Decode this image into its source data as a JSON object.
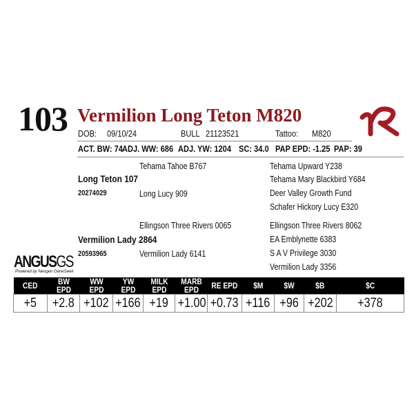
{
  "lot_number": "103",
  "name": "Vermilion Long Teton M820",
  "dob_label": "DOB:",
  "dob": "09/10/24",
  "sex": "BULL",
  "registration": "21123521",
  "tattoo_label": "Tattoo:",
  "tattoo": "M820",
  "stats": [
    "ACT. BW: 74",
    "ADJ. WW: 686",
    "ADJ. YW: 1204",
    "SC: 34.0",
    "PAP EPD: -1.25",
    "PAP: 39"
  ],
  "pedigree": {
    "sire": {
      "name": "Long Teton 107",
      "reg": "20274029",
      "sire": "Tehama Tahoe B767",
      "dam": "Long Lucy 909",
      "ss": "Tehama Upward Y238",
      "sd": "Tehama Mary Blackbird Y684",
      "ds": "Deer Valley Growth Fund",
      "dd": "Schafer Hickory Lucy E320"
    },
    "dam": {
      "name": "Vermilion Lady 2864",
      "reg": "20593965",
      "sire": "Ellingson Three Rivers 0065",
      "dam": "Vermilion Lady 6141",
      "ss": "Ellingson Three Rivers 8062",
      "sd": "EA Emblynette 6383",
      "ds": "S A V Privilege 3030",
      "dd": "Vermilion Lady 3356"
    }
  },
  "logo": {
    "main": "ANGUS",
    "suffix": "GS",
    "tagline": "Powered by Neogen GeneSeek"
  },
  "brand_logo": "VR",
  "epd_headers": [
    "CED",
    "BW EPD",
    "WW EPD",
    "YW EPD",
    "MILK EPD",
    "MARB EPD",
    "RE EPD",
    "$M",
    "$W",
    "$B",
    "$C"
  ],
  "epd_values": [
    "+5",
    "+2.8",
    "+102",
    "+166",
    "+19",
    "+1.00",
    "+0.73",
    "+116",
    "+96",
    "+202",
    "+378"
  ],
  "colors": {
    "title": "#8b1a1f",
    "header_bg": "#000000"
  }
}
